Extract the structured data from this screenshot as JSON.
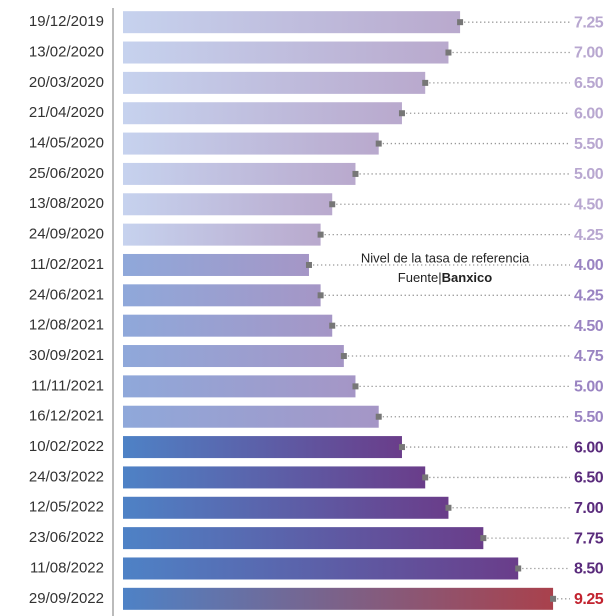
{
  "chart_data": {
    "type": "bar",
    "orientation": "horizontal",
    "categories": [
      "19/12/2019",
      "13/02/2020",
      "20/03/2020",
      "21/04/2020",
      "14/05/2020",
      "25/06/2020",
      "13/08/2020",
      "24/09/2020",
      "11/02/2021",
      "24/06/2021",
      "12/08/2021",
      "30/09/2021",
      "11/11/2021",
      "16/12/2021",
      "10/02/2022",
      "24/03/2022",
      "12/05/2022",
      "23/06/2022",
      "11/08/2022",
      "29/09/2022"
    ],
    "values": [
      7.25,
      7,
      6.5,
      6,
      5.5,
      5,
      4.5,
      4.25,
      4,
      4.25,
      4.5,
      4.75,
      5,
      5.5,
      6,
      6.5,
      7,
      7.75,
      8.5,
      9.25
    ],
    "value_labels": [
      "7.25",
      "7.00",
      "6.50",
      "6.00",
      "5.50",
      "5.00",
      "4.50",
      "4.25",
      "4.00",
      "4.25",
      "4.50",
      "4.75",
      "5.00",
      "5.50",
      "6.00",
      "6.50",
      "7.00",
      "7.75",
      "8.50",
      "9.25"
    ],
    "colors": [
      [
        "#c6d2ee",
        "#b9a9cd"
      ],
      [
        "#c6d2ee",
        "#b9a9cd"
      ],
      [
        "#c6d2ee",
        "#b9a9cd"
      ],
      [
        "#c6d2ee",
        "#b9a9cd"
      ],
      [
        "#c6d2ee",
        "#b9a9cd"
      ],
      [
        "#c6d2ee",
        "#b9a9cd"
      ],
      [
        "#c6d2ee",
        "#b9a9cd"
      ],
      [
        "#c6d2ee",
        "#b9a9cd"
      ],
      [
        "#8fa8da",
        "#a596c6"
      ],
      [
        "#8fa8da",
        "#a596c6"
      ],
      [
        "#8fa8da",
        "#a596c6"
      ],
      [
        "#8fa8da",
        "#a596c6"
      ],
      [
        "#8fa8da",
        "#a596c6"
      ],
      [
        "#8fa8da",
        "#a596c6"
      ],
      [
        "#4e82c6",
        "#6a3d8a"
      ],
      [
        "#4e82c6",
        "#6a3d8a"
      ],
      [
        "#4e82c6",
        "#6a3d8a"
      ],
      [
        "#4e82c6",
        "#6a3d8a"
      ],
      [
        "#4e82c6",
        "#6a3d8a"
      ],
      [
        "#4e82c6",
        "#a9414c"
      ]
    ],
    "label_colors": [
      "#b8a7d0",
      "#b8a7d0",
      "#b8a7d0",
      "#b8a7d0",
      "#b8a7d0",
      "#b8a7d0",
      "#b8a7d0",
      "#b8a7d0",
      "#9a84c2",
      "#9a84c2",
      "#9a84c2",
      "#9a84c2",
      "#9a84c2",
      "#9a84c2",
      "#5a2b7c",
      "#5a2b7c",
      "#5a2b7c",
      "#5a2b7c",
      "#5a2b7c",
      "#c2232f"
    ],
    "xlim": [
      0,
      9.3
    ],
    "annotation": "Nivel de la tasa de referencia",
    "source_prefix": "Fuente|",
    "source": "Banxico"
  }
}
